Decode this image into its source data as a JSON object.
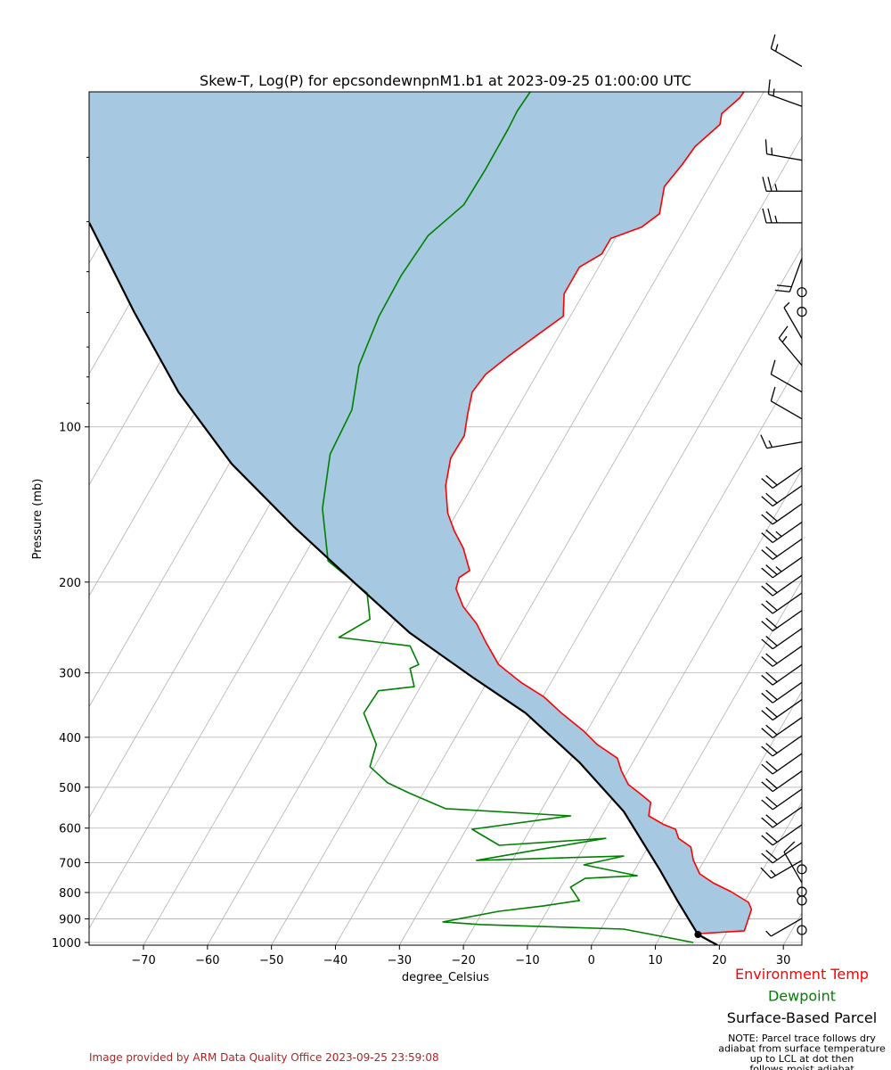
{
  "chart_data": {
    "type": "skewt",
    "title": "Skew-T, Log(P) for epcsondewnpnM1.b1 at 2023-09-25 01:00:00 UTC",
    "y_label": "Pressure (mb)",
    "x_label": "degree_Celsius",
    "log_y": true,
    "skew_deg": 30,
    "grid": true,
    "fill_color": "#a6c8e0",
    "xlim": [
      -78.5,
      32.9
    ],
    "ylim": [
      1012,
      22.4
    ],
    "xticks": [
      {
        "value": -70,
        "label": "−70"
      },
      {
        "value": -60,
        "label": "−60"
      },
      {
        "value": -50,
        "label": "−50"
      },
      {
        "value": -40,
        "label": "−40"
      },
      {
        "value": -30,
        "label": "−30"
      },
      {
        "value": -20,
        "label": "−20"
      },
      {
        "value": -10,
        "label": "−10"
      },
      0,
      10,
      20,
      30
    ],
    "yticks": [
      100,
      200,
      300,
      400,
      500,
      600,
      700,
      800,
      900,
      1000
    ],
    "yminorticks": [
      30,
      40,
      50,
      60,
      70,
      80,
      90
    ],
    "series": [
      {
        "name": "Environment Temp",
        "color": "#ff0000",
        "pressure": [
          961,
          949,
          863,
          836,
          797,
          766,
          736,
          693,
          653,
          628,
          603,
          591,
          568,
          535,
          514,
          494,
          465,
          439,
          413,
          389,
          359,
          334,
          313,
          289,
          261,
          241,
          223,
          206,
          196,
          190,
          172,
          159,
          147,
          130,
          115,
          104,
          94.6,
          85.6,
          79.1,
          73.0,
          66.9,
          61.0,
          55.2,
          49.0,
          46.2,
          43.1,
          41.0,
          38.6,
          34.2,
          31.0,
          28.6,
          25.9,
          24.7,
          23.0,
          22.4
        ],
        "temperature": [
          15.9,
          22.6,
          21.8,
          20.7,
          17.0,
          13.4,
          10.5,
          8.3,
          6.7,
          4.0,
          2.7,
          0.5,
          -2.7,
          -3.6,
          -6.1,
          -8.7,
          -11.0,
          -12.8,
          -17.2,
          -20.5,
          -25.6,
          -29.8,
          -34.7,
          -39.8,
          -43.9,
          -46.9,
          -50.6,
          -53.3,
          -53.8,
          -52.8,
          -55.8,
          -58.8,
          -61.4,
          -64.2,
          -65.9,
          -65.8,
          -67.2,
          -68.5,
          -68.0,
          -66.1,
          -63.7,
          -61.1,
          -63.0,
          -63.0,
          -60.7,
          -60.7,
          -56.9,
          -55.3,
          -57.0,
          -56.2,
          -55.8,
          -53.9,
          -54.6,
          -53.2,
          -53.1
        ]
      },
      {
        "name": "Dewpoint",
        "color": "#008000",
        "pressure": [
          1000,
          942,
          923,
          912,
          870,
          849,
          829,
          781,
          751,
          742,
          707,
          680,
          693,
          658,
          628,
          648,
          603,
          568,
          550,
          514,
          490,
          456,
          413,
          359,
          325,
          319,
          294,
          289,
          266,
          256,
          236,
          210,
          182,
          144,
          113,
          92.7,
          76.0,
          61.0,
          51.0,
          42.6,
          37.1,
          31.6,
          26.4,
          24.4,
          22.4
        ],
        "temperature": [
          15.7,
          3.6,
          -19.1,
          -25.3,
          -17.5,
          -11.0,
          -5.9,
          -8.5,
          -7.0,
          0.9,
          -8.4,
          -3.0,
          -25.6,
          -16.2,
          -7.4,
          -23.4,
          -29.1,
          -14.9,
          -35.1,
          -42.0,
          -46.5,
          -50.7,
          -51.7,
          -56.5,
          -56.2,
          -51.0,
          -53.3,
          -52.3,
          -55.3,
          -67.2,
          -64.0,
          -66.8,
          -75.8,
          -81.4,
          -85.1,
          -85.7,
          -88.6,
          -89.9,
          -90.1,
          -89.5,
          -86.7,
          -86.5,
          -86.6,
          -86.8,
          -86.5
        ]
      },
      {
        "name": "Surface-Based Parcel",
        "color": "#000000",
        "pressure": [
          1012,
          965,
          829,
          721,
          557,
          447,
          359,
          306,
          251,
          202,
          156,
          118,
          85.6,
          59.8,
          47.1,
          40.2
        ],
        "temperature": [
          19.7,
          15.7,
          9.4,
          3.8,
          -7.0,
          -18.4,
          -31.2,
          -42.7,
          -56.5,
          -69.3,
          -84.3,
          -99.6,
          -114.4,
          -128.6,
          -137.6,
          -143.6
        ]
      }
    ],
    "lcl": {
      "pressure": 965,
      "temperature": 15.7
    },
    "wind": [
      {
        "pressure": 20.0,
        "speed": 15,
        "direction": 300
      },
      {
        "pressure": 23.9,
        "speed": 15,
        "direction": 290
      },
      {
        "pressure": 30.4,
        "speed": 15,
        "direction": 280
      },
      {
        "pressure": 34.9,
        "speed": 25,
        "direction": 270
      },
      {
        "pressure": 40.2,
        "speed": 25,
        "direction": 270
      },
      {
        "pressure": 47.1,
        "speed": 20,
        "direction": 200
      },
      {
        "pressure": 54.8,
        "speed": 0,
        "direction": 0
      },
      {
        "pressure": 59.8,
        "speed": 0,
        "direction": 0
      },
      {
        "pressure": 67.4,
        "speed": 5,
        "direction": 330
      },
      {
        "pressure": 76.0,
        "speed": 15,
        "direction": 320
      },
      {
        "pressure": 85.6,
        "speed": 10,
        "direction": 300
      },
      {
        "pressure": 96.5,
        "speed": 10,
        "direction": 300
      },
      {
        "pressure": 107,
        "speed": 15,
        "direction": 260
      },
      {
        "pressure": 120,
        "speed": 20,
        "direction": 235
      },
      {
        "pressure": 130,
        "speed": 20,
        "direction": 235
      },
      {
        "pressure": 141,
        "speed": 20,
        "direction": 235
      },
      {
        "pressure": 153,
        "speed": 25,
        "direction": 235
      },
      {
        "pressure": 165,
        "speed": 20,
        "direction": 235
      },
      {
        "pressure": 179,
        "speed": 25,
        "direction": 235
      },
      {
        "pressure": 194,
        "speed": 20,
        "direction": 235
      },
      {
        "pressure": 210,
        "speed": 20,
        "direction": 235
      },
      {
        "pressure": 227,
        "speed": 20,
        "direction": 235
      },
      {
        "pressure": 246,
        "speed": 20,
        "direction": 235
      },
      {
        "pressure": 266,
        "speed": 20,
        "direction": 235
      },
      {
        "pressure": 289,
        "speed": 20,
        "direction": 235
      },
      {
        "pressure": 313,
        "speed": 20,
        "direction": 235
      },
      {
        "pressure": 338,
        "speed": 20,
        "direction": 235
      },
      {
        "pressure": 366,
        "speed": 20,
        "direction": 235
      },
      {
        "pressure": 397,
        "speed": 20,
        "direction": 235
      },
      {
        "pressure": 430,
        "speed": 20,
        "direction": 235
      },
      {
        "pressure": 465,
        "speed": 20,
        "direction": 235
      },
      {
        "pressure": 504,
        "speed": 20,
        "direction": 235
      },
      {
        "pressure": 546,
        "speed": 20,
        "direction": 235
      },
      {
        "pressure": 591,
        "speed": 20,
        "direction": 235
      },
      {
        "pressure": 640,
        "speed": 20,
        "direction": 235
      },
      {
        "pressure": 693,
        "speed": 15,
        "direction": 240
      },
      {
        "pressure": 721,
        "speed": 0,
        "direction": 0
      },
      {
        "pressure": 766,
        "speed": 10,
        "direction": 330
      },
      {
        "pressure": 797,
        "speed": 0,
        "direction": 0
      },
      {
        "pressure": 829,
        "speed": 0,
        "direction": 0
      },
      {
        "pressure": 898,
        "speed": 5,
        "direction": 240
      },
      {
        "pressure": 946,
        "speed": 0,
        "direction": 0
      }
    ],
    "note": [
      "NOTE: Parcel trace follows dry",
      "adiabat from surface temperature",
      "up to LCL at dot then",
      "follows moist adiabat"
    ],
    "footer": "Image provided by ARM Data Quality Office 2023-09-25 23:59:08"
  }
}
